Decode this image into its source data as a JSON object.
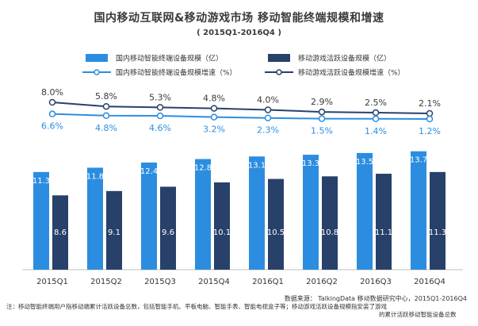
{
  "title": "国内移动互联网&移动游戏市场  移动智能终端规模和增速",
  "subtitle": "( 2015Q1-2016Q4 )",
  "colors": {
    "bar1": "#2c8de0",
    "bar2": "#28416a",
    "line1": "#2c8de0",
    "line2": "#28416a",
    "axis": "#bfbfbf",
    "text": "#333333",
    "line1_label": "#2c8de0",
    "line2_label": "#3a3a3a"
  },
  "chart_data": {
    "type": "bar+line",
    "categories": [
      "2015Q1",
      "2015Q2",
      "2015Q3",
      "2015Q4",
      "2016Q1",
      "2016Q2",
      "2016Q3",
      "2016Q4"
    ],
    "series": [
      {
        "name": "国内移动智能终端设备规模（亿）",
        "kind": "bar",
        "values": [
          11.3,
          11.8,
          12.4,
          12.8,
          13.1,
          13.3,
          13.5,
          13.7
        ],
        "labels": [
          "11.3",
          "11.8",
          "12.4",
          "12.8",
          "13.1",
          "13.3",
          "13.5",
          "13.7"
        ]
      },
      {
        "name": "移动游戏活跃设备规模（亿）",
        "kind": "bar",
        "values": [
          8.6,
          9.1,
          9.6,
          10.1,
          10.5,
          10.8,
          11.1,
          11.3
        ],
        "labels": [
          "8.6",
          "9.1",
          "9.6",
          "10.1",
          "10.5",
          "10.8",
          "11.1",
          "11.3"
        ]
      },
      {
        "name": "国内移动智能终端设备规模增速（%）",
        "kind": "line",
        "values": [
          6.6,
          4.8,
          4.6,
          3.2,
          2.3,
          1.5,
          1.4,
          1.2
        ],
        "labels": [
          "6.6%",
          "4.8%",
          "4.6%",
          "3.2%",
          "2.3%",
          "1.5%",
          "1.4%",
          "1.2%"
        ]
      },
      {
        "name": "移动游戏活跃设备规模增速（%）",
        "kind": "line",
        "values": [
          8.0,
          5.8,
          5.3,
          4.8,
          4.0,
          2.9,
          2.5,
          2.1
        ],
        "labels": [
          "8.0%",
          "5.8%",
          "5.3%",
          "4.8%",
          "4.0%",
          "2.9%",
          "2.5%",
          "2.1%"
        ]
      }
    ],
    "legend_position": "top",
    "grid": false
  },
  "source": "数据来源：  TalkingData 移动数据研究中心，2015Q1-2016Q4",
  "note_line1": "注：移动智能终端用户指移动端累计活跃设备总数，包括智能手机、平板电脑、智能手表、智能电视盒子等；移动游戏活跃设备规模指安装了游戏",
  "note_line2": "的累计活跃移动智能设备总数"
}
